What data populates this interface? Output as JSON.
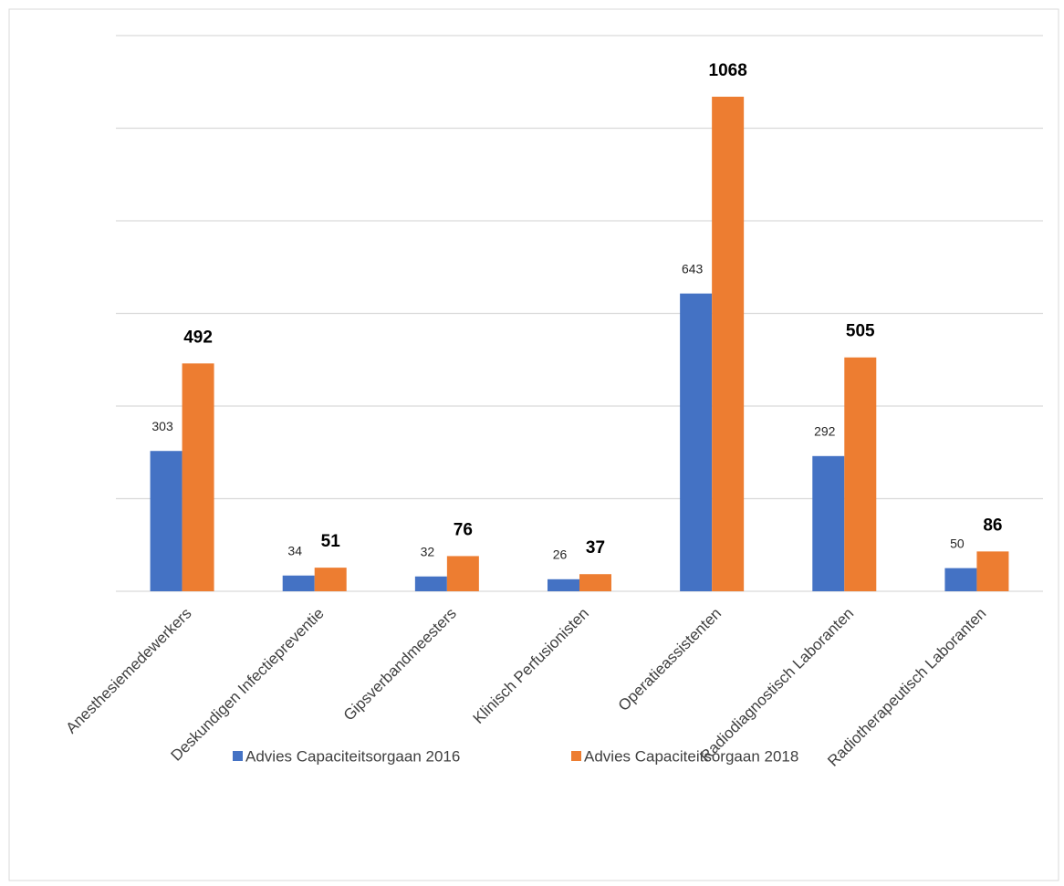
{
  "chart_data": {
    "type": "bar",
    "categories": [
      "Anesthesiemedewerkers",
      "Deskundigen Infectiepreventie",
      "Gipsverbandmeesters",
      "Klinisch Perfusionisten",
      "Operatieassistenten",
      "Radiodiagnostisch Laboranten",
      "Radiotherapeutisch Laboranten"
    ],
    "series": [
      {
        "name": "Advies Capaciteitsorgaan 2016",
        "color": "#4472c4",
        "values": [
          303,
          34,
          32,
          26,
          643,
          292,
          50
        ]
      },
      {
        "name": "Advies Capaciteitsorgaan 2018",
        "color": "#ed7d31",
        "values": [
          492,
          51,
          76,
          37,
          1068,
          505,
          86
        ]
      }
    ],
    "ylim": [
      0,
      1200
    ],
    "yticks": [
      0,
      200,
      400,
      600,
      800,
      1000,
      1200
    ],
    "grid": true,
    "legend": "bottom"
  }
}
